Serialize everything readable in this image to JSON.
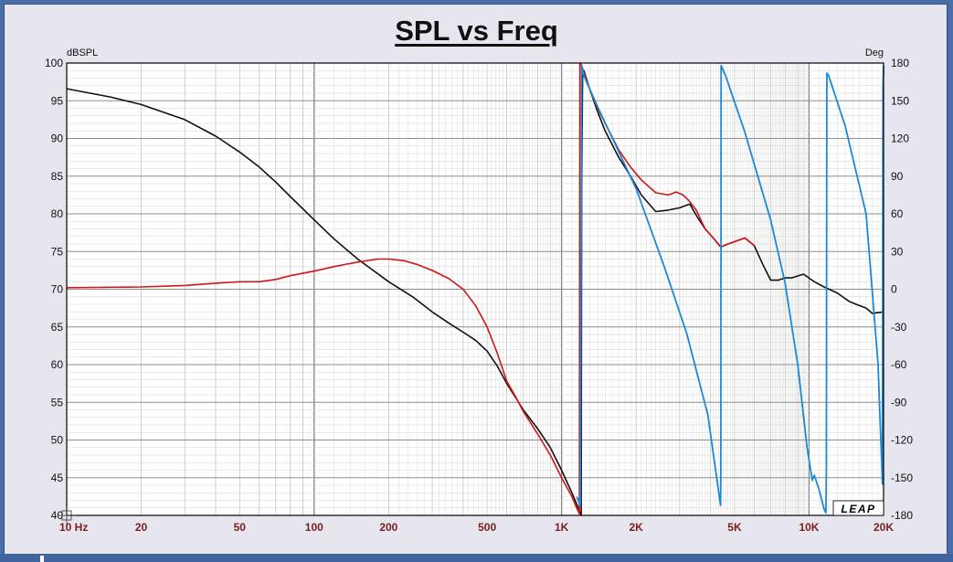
{
  "chart_data": {
    "type": "line",
    "title": "SPL vs Freq",
    "y_left_unit": "dBSPL",
    "y_right_unit": "Deg",
    "x_scale": "log",
    "xlim": [
      10,
      20000
    ],
    "ylim": [
      40,
      100
    ],
    "ylim_right": [
      -180,
      180
    ],
    "grid": true,
    "x_ticks": [
      {
        "v": 10,
        "label": "10 Hz"
      },
      {
        "v": 20,
        "label": "20"
      },
      {
        "v": 50,
        "label": "50"
      },
      {
        "v": 100,
        "label": "100"
      },
      {
        "v": 200,
        "label": "200"
      },
      {
        "v": 500,
        "label": "500"
      },
      {
        "v": 1000,
        "label": "1K"
      },
      {
        "v": 2000,
        "label": "2K"
      },
      {
        "v": 5000,
        "label": "5K"
      },
      {
        "v": 10000,
        "label": "10K"
      },
      {
        "v": 20000,
        "label": "20K"
      }
    ],
    "y_ticks": [
      "100",
      "95",
      "90",
      "85",
      "80",
      "75",
      "70",
      "65",
      "60",
      "55",
      "50",
      "45",
      "40"
    ],
    "y_right_ticks": [
      "180",
      "150",
      "120",
      "90",
      "60",
      "30",
      "0",
      "-30",
      "-60",
      "-90",
      "-120",
      "-150",
      "-180"
    ],
    "series": [
      {
        "color": "#111111",
        "axis": "left",
        "line_width": 1.6,
        "points": [
          [
            10,
            96.6
          ],
          [
            15,
            95.5
          ],
          [
            20,
            94.5
          ],
          [
            30,
            92.5
          ],
          [
            40,
            90.3
          ],
          [
            50,
            88.2
          ],
          [
            60,
            86.2
          ],
          [
            70,
            84.2
          ],
          [
            80,
            82.3
          ],
          [
            100,
            79.2
          ],
          [
            120,
            76.7
          ],
          [
            150,
            74.0
          ],
          [
            200,
            71.0
          ],
          [
            250,
            69.0
          ],
          [
            300,
            67.0
          ],
          [
            350,
            65.5
          ],
          [
            400,
            64.3
          ],
          [
            450,
            63.2
          ],
          [
            500,
            61.8
          ],
          [
            550,
            59.8
          ],
          [
            600,
            57.5
          ],
          [
            700,
            54.0
          ],
          [
            800,
            51.5
          ],
          [
            900,
            49.0
          ],
          [
            1000,
            46.0
          ],
          [
            1100,
            43.0
          ],
          [
            1150,
            41.5
          ],
          [
            1190,
            40.3
          ],
          [
            1200,
            40.1
          ],
          [
            1205,
            84.0
          ],
          [
            1215,
            98.0
          ],
          [
            1230,
            99.0
          ],
          [
            1300,
            96.5
          ],
          [
            1400,
            93.5
          ],
          [
            1500,
            91.0
          ],
          [
            1700,
            87.5
          ],
          [
            1900,
            85.0
          ],
          [
            2100,
            82.5
          ],
          [
            2400,
            80.3
          ],
          [
            2700,
            80.5
          ],
          [
            3000,
            80.8
          ],
          [
            3300,
            81.3
          ],
          [
            3500,
            79.8
          ],
          [
            3800,
            78.0
          ],
          [
            4100,
            76.8
          ],
          [
            4400,
            75.6
          ],
          [
            4700,
            76.0
          ],
          [
            5000,
            76.3
          ],
          [
            5500,
            76.8
          ],
          [
            6000,
            75.8
          ],
          [
            6500,
            73.3
          ],
          [
            7000,
            71.2
          ],
          [
            7500,
            71.2
          ],
          [
            8000,
            71.5
          ],
          [
            8500,
            71.5
          ],
          [
            9500,
            72.0
          ],
          [
            10500,
            71.0
          ],
          [
            11500,
            70.3
          ],
          [
            13000,
            69.5
          ],
          [
            14500,
            68.4
          ],
          [
            15500,
            68.0
          ],
          [
            17000,
            67.5
          ],
          [
            18000,
            66.8
          ],
          [
            20000,
            67.0
          ]
        ]
      },
      {
        "color": "#d01616",
        "axis": "left",
        "line_width": 1.6,
        "points": [
          [
            10,
            70.2
          ],
          [
            20,
            70.3
          ],
          [
            30,
            70.5
          ],
          [
            40,
            70.8
          ],
          [
            50,
            71.0
          ],
          [
            60,
            71.0
          ],
          [
            70,
            71.3
          ],
          [
            80,
            71.8
          ],
          [
            100,
            72.4
          ],
          [
            120,
            73.0
          ],
          [
            150,
            73.6
          ],
          [
            180,
            74.0
          ],
          [
            200,
            74.0
          ],
          [
            230,
            73.8
          ],
          [
            260,
            73.3
          ],
          [
            300,
            72.5
          ],
          [
            350,
            71.4
          ],
          [
            400,
            70.0
          ],
          [
            450,
            67.8
          ],
          [
            500,
            65.0
          ],
          [
            550,
            61.5
          ],
          [
            600,
            57.8
          ],
          [
            650,
            55.8
          ],
          [
            700,
            53.8
          ],
          [
            800,
            50.8
          ],
          [
            900,
            48.0
          ],
          [
            1000,
            45.0
          ],
          [
            1100,
            42.5
          ],
          [
            1150,
            41.0
          ],
          [
            1180,
            40.2
          ],
          [
            1185,
            100.0
          ],
          [
            1190,
            100.0
          ],
          [
            1210,
            99.5
          ],
          [
            1250,
            98.0
          ],
          [
            1300,
            96.5
          ],
          [
            1400,
            94.0
          ],
          [
            1500,
            92.0
          ],
          [
            1700,
            88.5
          ],
          [
            1900,
            86.2
          ],
          [
            2100,
            84.5
          ],
          [
            2400,
            82.8
          ],
          [
            2700,
            82.5
          ],
          [
            2900,
            82.9
          ],
          [
            3100,
            82.5
          ],
          [
            3300,
            81.6
          ],
          [
            3500,
            80.5
          ],
          [
            3800,
            78.0
          ],
          [
            4100,
            76.8
          ],
          [
            4400,
            75.6
          ],
          [
            4700,
            76.0
          ],
          [
            5000,
            76.3
          ],
          [
            5500,
            76.8
          ],
          [
            6000,
            75.8
          ]
        ]
      },
      {
        "color": "#1e88d8",
        "axis": "right",
        "line_width": 1.8,
        "points": [
          [
            1150,
            -165
          ],
          [
            1190,
            -172
          ],
          [
            1205,
            178
          ],
          [
            1230,
            170
          ],
          [
            1400,
            145
          ],
          [
            2000,
            80
          ],
          [
            2600,
            18
          ],
          [
            3200,
            -35
          ],
          [
            3900,
            -100
          ],
          [
            4390,
            -172
          ],
          [
            4400,
            -145
          ],
          [
            4410,
            178
          ],
          [
            4600,
            170
          ],
          [
            5500,
            125
          ],
          [
            7000,
            55
          ],
          [
            8000,
            5
          ],
          [
            9000,
            -60
          ],
          [
            9800,
            -125
          ],
          [
            10300,
            -152
          ],
          [
            10500,
            -148
          ],
          [
            11000,
            -160
          ],
          [
            11500,
            -175
          ],
          [
            11700,
            -178
          ],
          [
            11750,
            -145
          ],
          [
            11800,
            172
          ],
          [
            12000,
            170
          ],
          [
            14000,
            130
          ],
          [
            17000,
            60
          ],
          [
            19000,
            -60
          ],
          [
            19800,
            -155
          ],
          [
            19900,
            160
          ],
          [
            20000,
            178
          ]
        ]
      }
    ],
    "watermark": "LEAP"
  }
}
